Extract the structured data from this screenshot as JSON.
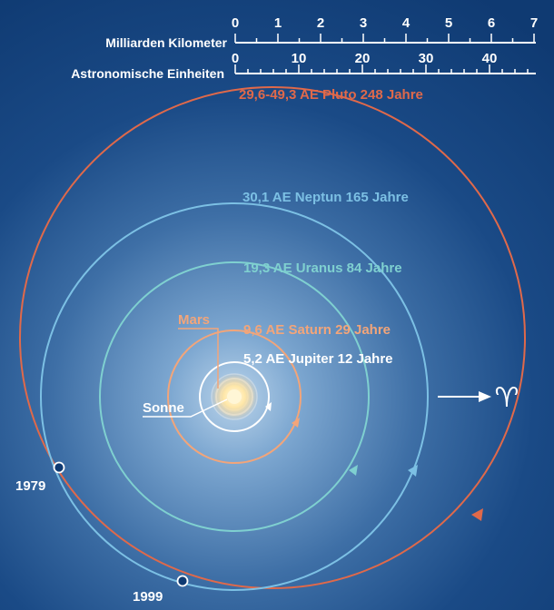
{
  "scale": {
    "km_label": "Milliarden Kilometer",
    "km_ticks": [
      "0",
      "1",
      "2",
      "3",
      "4",
      "5",
      "6",
      "7"
    ],
    "au_label": "Astronomische Einheiten",
    "au_ticks": [
      "0",
      "10",
      "20",
      "30",
      "40"
    ]
  },
  "orbits": {
    "pluto": "29,6-49,3 AE Pluto 248 Jahre",
    "neptune": "30,1 AE Neptun 165 Jahre",
    "uranus": "19,3 AE Uranus 84 Jahre",
    "saturn": "9,6 AE Saturn 29 Jahre",
    "jupiter": "5,2 AE Jupiter 12 Jahre",
    "mars": "Mars",
    "sun": "Sonne"
  },
  "years": {
    "y1979": "1979",
    "y1999": "1999"
  },
  "aries_symbol": "♈︎",
  "colors": {
    "pluto": "#e0694a",
    "neptune": "#7cc0e4",
    "uranus": "#7fd0d0",
    "saturn": "#f2a57a",
    "jupiter": "#ffffff",
    "mars": "#f2a57a"
  }
}
